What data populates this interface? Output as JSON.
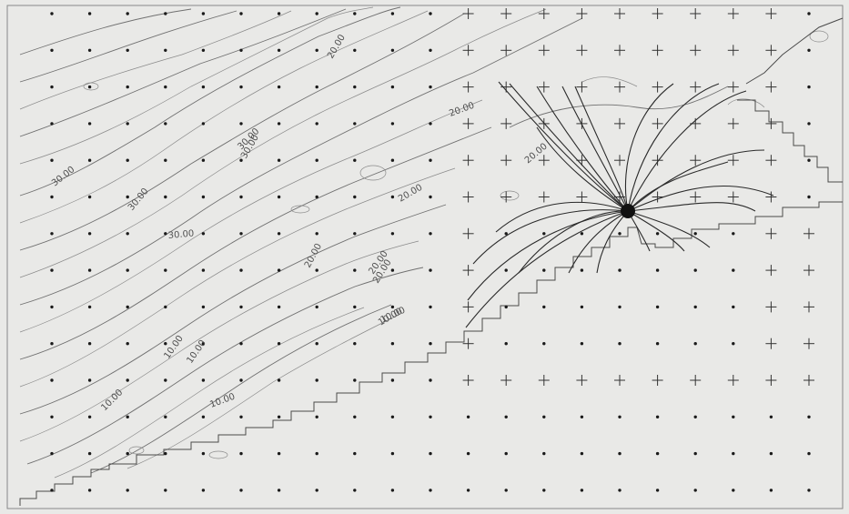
{
  "contour_labels": [
    {
      "text": "30.00",
      "angle": -38
    },
    {
      "text": "30.00",
      "angle": -50
    },
    {
      "text": "30.00",
      "angle": -60
    },
    {
      "text": "30.00",
      "angle": -45
    },
    {
      "text": "30.00",
      "angle": -5
    },
    {
      "text": "20.00",
      "angle": -62
    },
    {
      "text": "20.00",
      "angle": -20
    },
    {
      "text": "20.00",
      "angle": -30
    },
    {
      "text": "20.00",
      "angle": -55
    },
    {
      "text": "20.00",
      "angle": -58
    },
    {
      "text": "20.00",
      "angle": -40
    },
    {
      "text": "20.00",
      "angle": -60
    },
    {
      "text": "10.00",
      "angle": -55
    },
    {
      "text": "10.00",
      "angle": -45
    },
    {
      "text": "10.00",
      "angle": -55
    },
    {
      "text": "10.00",
      "angle": -20
    },
    {
      "text": "10.00",
      "angle": -30
    },
    {
      "text": "10.00",
      "angle": -25
    }
  ],
  "colors": {
    "background": "#e9e9e7",
    "contour": "#707070",
    "ray": "#2a2a2a",
    "dot": "#1a1a1a"
  }
}
